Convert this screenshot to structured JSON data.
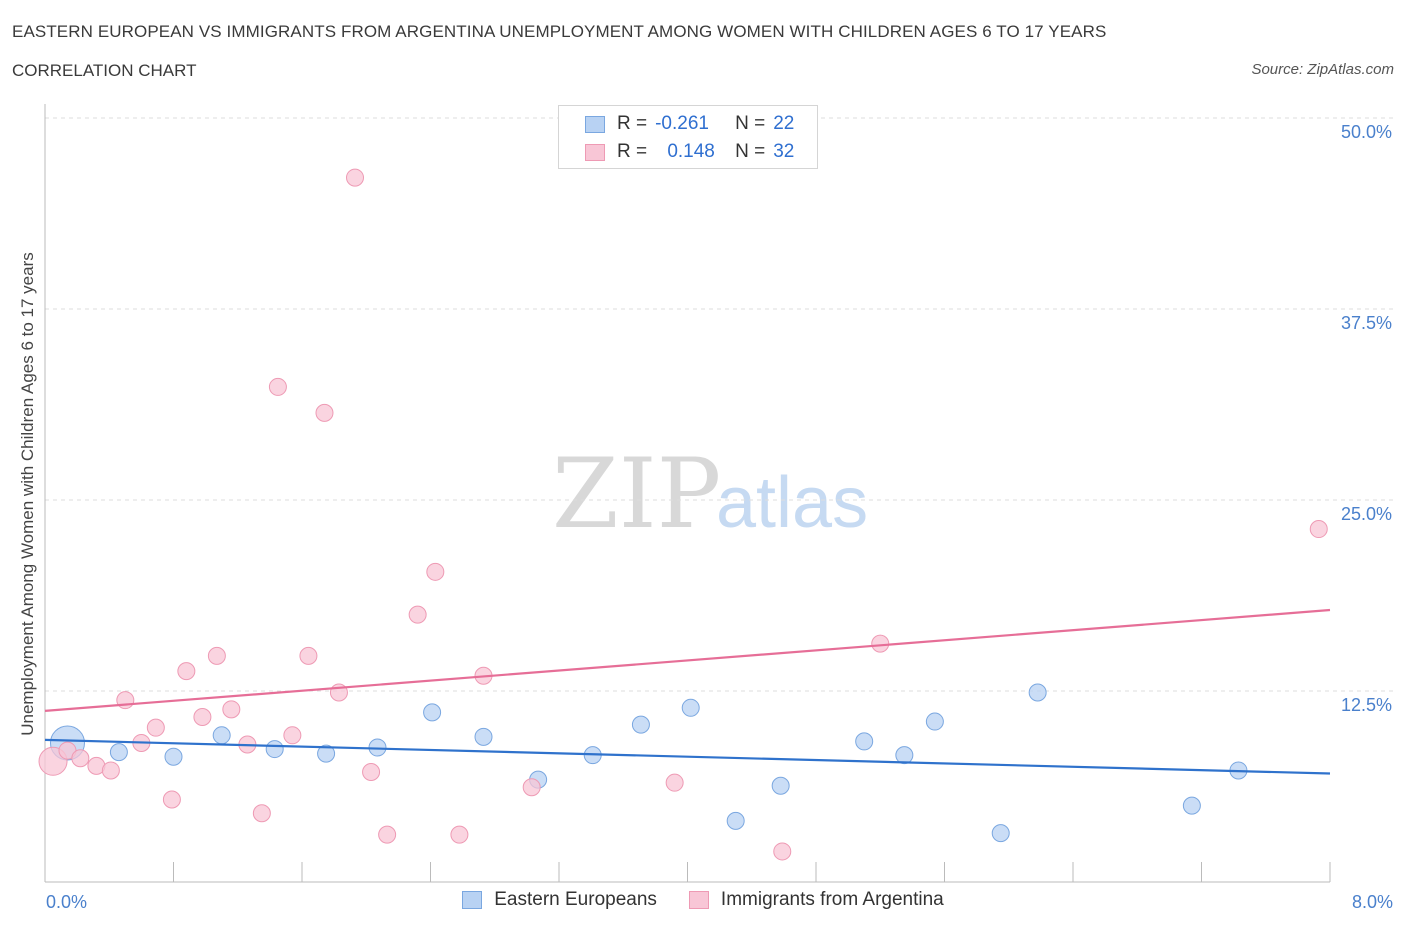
{
  "header": {
    "title": "EASTERN EUROPEAN VS IMMIGRANTS FROM ARGENTINA UNEMPLOYMENT AMONG WOMEN WITH CHILDREN AGES 6 TO 17 YEARS",
    "subtitle": "CORRELATION CHART",
    "source": "Source: ZipAtlas.com"
  },
  "watermark": {
    "zip": "ZIP",
    "atlas": "atlas"
  },
  "stats": {
    "row1": {
      "r_label": "R =",
      "r_value": "-0.261",
      "n_label": "N =",
      "n_value": "22"
    },
    "row2": {
      "r_label": "R =",
      "r_value": "0.148",
      "n_label": "N =",
      "n_value": "32"
    }
  },
  "legend": {
    "series1": "Eastern Europeans",
    "series2": "Immigrants from Argentina"
  },
  "colors": {
    "series1_fill": "#b8d2f3",
    "series1_stroke": "#7aa7e0",
    "series1_line": "#2f72cc",
    "series2_fill": "#f8c6d6",
    "series2_stroke": "#ee9ab4",
    "series2_line": "#e66e97",
    "tick_text": "#4a80cc",
    "grid": "#dddddd"
  },
  "chart_data": {
    "type": "scatter",
    "title": "EASTERN EUROPEAN VS IMMIGRANTS FROM ARGENTINA UNEMPLOYMENT AMONG WOMEN WITH CHILDREN AGES 6 TO 17 YEARS",
    "xlabel": "",
    "ylabel": "Unemployment Among Women with Children Ages 6 to 17 years",
    "xlim": [
      0,
      8
    ],
    "ylim": [
      0,
      50
    ],
    "x_tick_labels": [
      "0.0%",
      "8.0%"
    ],
    "y_ticks": [
      12.5,
      25.0,
      37.5,
      50.0
    ],
    "y_tick_labels": [
      "12.5%",
      "25.0%",
      "37.5%",
      "50.0%"
    ],
    "grid": "horizontal dashed",
    "legend_position": "bottom-center",
    "series": [
      {
        "name": "Eastern Europeans",
        "trend": {
          "x": [
            0,
            8
          ],
          "y": [
            9.3,
            7.1
          ]
        },
        "points": [
          {
            "x": 0.14,
            "y": 9.1,
            "big": true
          },
          {
            "x": 0.46,
            "y": 8.5
          },
          {
            "x": 0.8,
            "y": 8.2
          },
          {
            "x": 1.1,
            "y": 9.6
          },
          {
            "x": 1.43,
            "y": 8.7
          },
          {
            "x": 1.75,
            "y": 8.4
          },
          {
            "x": 2.07,
            "y": 8.8
          },
          {
            "x": 2.41,
            "y": 11.1
          },
          {
            "x": 2.73,
            "y": 9.5
          },
          {
            "x": 3.07,
            "y": 6.7
          },
          {
            "x": 3.41,
            "y": 8.3
          },
          {
            "x": 3.71,
            "y": 10.3
          },
          {
            "x": 4.02,
            "y": 11.4
          },
          {
            "x": 4.3,
            "y": 4.0
          },
          {
            "x": 4.58,
            "y": 6.3
          },
          {
            "x": 5.1,
            "y": 9.2
          },
          {
            "x": 5.35,
            "y": 8.3
          },
          {
            "x": 5.54,
            "y": 10.5
          },
          {
            "x": 5.95,
            "y": 3.2
          },
          {
            "x": 6.18,
            "y": 12.4
          },
          {
            "x": 7.14,
            "y": 5.0
          },
          {
            "x": 7.43,
            "y": 7.3
          }
        ]
      },
      {
        "name": "Immigrants from Argentina",
        "trend": {
          "x": [
            0,
            8
          ],
          "y": [
            11.2,
            17.8
          ]
        },
        "points": [
          {
            "x": 0.05,
            "y": 7.9,
            "big": true
          },
          {
            "x": 0.14,
            "y": 8.6
          },
          {
            "x": 0.22,
            "y": 8.1
          },
          {
            "x": 0.32,
            "y": 7.6
          },
          {
            "x": 0.41,
            "y": 7.3
          },
          {
            "x": 0.5,
            "y": 11.9
          },
          {
            "x": 0.6,
            "y": 9.1
          },
          {
            "x": 0.69,
            "y": 10.1
          },
          {
            "x": 0.79,
            "y": 5.4
          },
          {
            "x": 0.88,
            "y": 13.8
          },
          {
            "x": 0.98,
            "y": 10.8
          },
          {
            "x": 1.07,
            "y": 14.8
          },
          {
            "x": 1.16,
            "y": 11.3
          },
          {
            "x": 1.26,
            "y": 9.0
          },
          {
            "x": 1.35,
            "y": 4.5
          },
          {
            "x": 1.45,
            "y": 32.4
          },
          {
            "x": 1.54,
            "y": 9.6
          },
          {
            "x": 1.64,
            "y": 14.8
          },
          {
            "x": 1.74,
            "y": 30.7
          },
          {
            "x": 1.83,
            "y": 12.4
          },
          {
            "x": 1.93,
            "y": 46.1
          },
          {
            "x": 2.03,
            "y": 7.2
          },
          {
            "x": 2.13,
            "y": 3.1
          },
          {
            "x": 2.32,
            "y": 17.5
          },
          {
            "x": 2.43,
            "y": 20.3
          },
          {
            "x": 2.58,
            "y": 3.1
          },
          {
            "x": 2.73,
            "y": 13.5
          },
          {
            "x": 3.03,
            "y": 6.2
          },
          {
            "x": 3.92,
            "y": 6.5
          },
          {
            "x": 4.59,
            "y": 2.0
          },
          {
            "x": 5.2,
            "y": 15.6
          },
          {
            "x": 7.93,
            "y": 23.1
          }
        ]
      }
    ]
  }
}
